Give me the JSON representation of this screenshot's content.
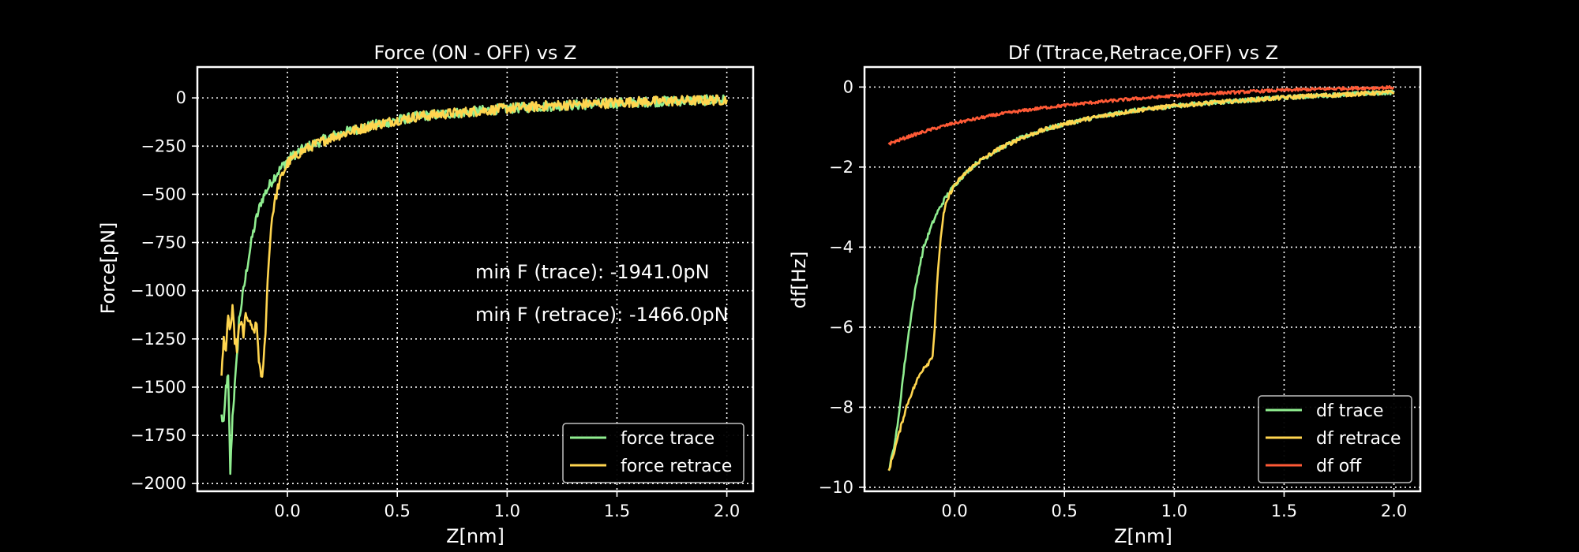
{
  "chart_data": [
    {
      "type": "line",
      "title": "Force (ON - OFF) vs Z",
      "xlabel": "Z[nm]",
      "ylabel": "Force[pN]",
      "xlim": [
        -0.41,
        2.12
      ],
      "ylim": [
        -2040,
        160
      ],
      "xticks": [
        0.0,
        0.5,
        1.0,
        1.5,
        2.0
      ],
      "xtick_labels": [
        "0.0",
        "0.5",
        "1.0",
        "1.5",
        "2.0"
      ],
      "yticks": [
        0,
        -250,
        -500,
        -750,
        -1000,
        -1250,
        -1500,
        -1750,
        -2000
      ],
      "ytick_labels": [
        "0",
        "−250",
        "−500",
        "−750",
        "−1000",
        "−1250",
        "−1500",
        "−1750",
        "−2000"
      ],
      "grid": true,
      "legend_position": "lower right",
      "annotations": [
        "min F (trace): -1941.0pN",
        "min F (retrace): -1466.0pN"
      ],
      "series": [
        {
          "name": "force trace",
          "color": "#90ee90",
          "x": [
            -0.3,
            -0.29,
            -0.28,
            -0.27,
            -0.26,
            -0.25,
            -0.24,
            -0.23,
            -0.22,
            -0.2,
            -0.18,
            -0.16,
            -0.14,
            -0.12,
            -0.1,
            -0.08,
            -0.06,
            -0.04,
            -0.02,
            0.0,
            0.05,
            0.1,
            0.2,
            0.3,
            0.4,
            0.5,
            0.6,
            0.8,
            1.0,
            1.2,
            1.4,
            1.6,
            1.8,
            2.0
          ],
          "y": [
            -1650,
            -1700,
            -1500,
            -1450,
            -1941,
            -1650,
            -1500,
            -1350,
            -1150,
            -1000,
            -850,
            -720,
            -620,
            -540,
            -490,
            -450,
            -410,
            -380,
            -350,
            -320,
            -280,
            -250,
            -200,
            -165,
            -140,
            -115,
            -95,
            -75,
            -55,
            -42,
            -32,
            -22,
            -15,
            -10
          ]
        },
        {
          "name": "force retrace",
          "color": "#ffd54f",
          "x": [
            -0.3,
            -0.29,
            -0.28,
            -0.27,
            -0.26,
            -0.25,
            -0.24,
            -0.23,
            -0.22,
            -0.21,
            -0.2,
            -0.19,
            -0.18,
            -0.17,
            -0.16,
            -0.15,
            -0.14,
            -0.13,
            -0.12,
            -0.11,
            -0.1,
            -0.09,
            -0.08,
            -0.07,
            -0.06,
            -0.05,
            -0.04,
            -0.02,
            0.0,
            0.05,
            0.1,
            0.2,
            0.3,
            0.4,
            0.5,
            0.6,
            0.8,
            1.0,
            1.2,
            1.4,
            1.6,
            1.8,
            2.0
          ],
          "y": [
            -1450,
            -1250,
            -1300,
            -1150,
            -1200,
            -1100,
            -1250,
            -1300,
            -1200,
            -1150,
            -1250,
            -1100,
            -1180,
            -1150,
            -1220,
            -1200,
            -1180,
            -1350,
            -1466,
            -1400,
            -1200,
            -950,
            -750,
            -620,
            -550,
            -500,
            -450,
            -390,
            -340,
            -290,
            -255,
            -205,
            -170,
            -140,
            -115,
            -95,
            -75,
            -55,
            -40,
            -30,
            -20,
            -15,
            -10
          ]
        }
      ]
    },
    {
      "type": "line",
      "title": "Df (Ttrace,Retrace,OFF) vs Z",
      "xlabel": "Z[nm]",
      "ylabel": "df[Hz]",
      "xlim": [
        -0.41,
        2.12
      ],
      "ylim": [
        -10.1,
        0.5
      ],
      "xticks": [
        0.0,
        0.5,
        1.0,
        1.5,
        2.0
      ],
      "xtick_labels": [
        "0.0",
        "0.5",
        "1.0",
        "1.5",
        "2.0"
      ],
      "yticks": [
        0,
        -2,
        -4,
        -6,
        -8,
        -10
      ],
      "ytick_labels": [
        "0",
        "−2",
        "−4",
        "−6",
        "−8",
        "−10"
      ],
      "grid": true,
      "legend_position": "lower right",
      "series": [
        {
          "name": "df trace",
          "color": "#90ee90",
          "x": [
            -0.3,
            -0.28,
            -0.26,
            -0.24,
            -0.22,
            -0.2,
            -0.18,
            -0.16,
            -0.14,
            -0.12,
            -0.1,
            -0.08,
            -0.06,
            -0.04,
            -0.02,
            0.0,
            0.05,
            0.1,
            0.2,
            0.3,
            0.4,
            0.5,
            0.6,
            0.8,
            1.0,
            1.2,
            1.4,
            1.6,
            1.8,
            2.0
          ],
          "y": [
            -9.6,
            -9.1,
            -8.5,
            -7.5,
            -6.6,
            -5.8,
            -5.1,
            -4.5,
            -4.0,
            -3.7,
            -3.4,
            -3.15,
            -2.95,
            -2.75,
            -2.6,
            -2.45,
            -2.15,
            -1.9,
            -1.55,
            -1.28,
            -1.08,
            -0.92,
            -0.8,
            -0.6,
            -0.47,
            -0.38,
            -0.3,
            -0.23,
            -0.18,
            -0.13
          ]
        },
        {
          "name": "df retrace",
          "color": "#ffd54f",
          "x": [
            -0.3,
            -0.28,
            -0.26,
            -0.24,
            -0.22,
            -0.2,
            -0.18,
            -0.16,
            -0.14,
            -0.12,
            -0.1,
            -0.09,
            -0.08,
            -0.07,
            -0.06,
            -0.05,
            -0.04,
            -0.02,
            0.0,
            0.05,
            0.1,
            0.2,
            0.3,
            0.4,
            0.5,
            0.6,
            0.8,
            1.0,
            1.2,
            1.4,
            1.6,
            1.8,
            2.0
          ],
          "y": [
            -9.6,
            -9.2,
            -8.8,
            -8.4,
            -8.0,
            -7.7,
            -7.45,
            -7.2,
            -7.0,
            -6.9,
            -6.7,
            -6.0,
            -5.0,
            -4.2,
            -3.6,
            -3.2,
            -2.95,
            -2.65,
            -2.45,
            -2.15,
            -1.9,
            -1.55,
            -1.28,
            -1.08,
            -0.92,
            -0.8,
            -0.6,
            -0.47,
            -0.38,
            -0.3,
            -0.23,
            -0.18,
            -0.13
          ]
        },
        {
          "name": "df off",
          "color": "#ff5a36",
          "x": [
            -0.3,
            -0.2,
            -0.1,
            0.0,
            0.2,
            0.4,
            0.6,
            0.8,
            1.0,
            1.2,
            1.4,
            1.6,
            1.8,
            2.0
          ],
          "y": [
            -1.42,
            -1.22,
            -1.05,
            -0.9,
            -0.68,
            -0.52,
            -0.4,
            -0.3,
            -0.22,
            -0.15,
            -0.1,
            -0.06,
            -0.03,
            -0.01
          ]
        }
      ]
    }
  ]
}
